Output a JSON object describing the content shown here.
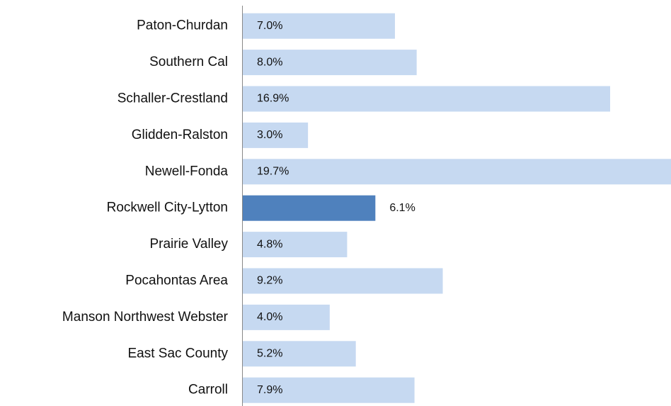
{
  "chart_data": {
    "type": "barh",
    "categories": [
      "Paton-Churdan",
      "Southern Cal",
      "Schaller-Crestland",
      "Glidden-Ralston",
      "Newell-Fonda",
      "Rockwell City-Lytton",
      "Prairie Valley",
      "Pocahontas Area",
      "Manson Northwest Webster",
      "East Sac County",
      "Carroll"
    ],
    "values": [
      7.0,
      8.0,
      16.9,
      3.0,
      19.7,
      6.1,
      4.8,
      9.2,
      4.0,
      5.2,
      7.9
    ],
    "value_labels": [
      "7.0%",
      "8.0%",
      "16.9%",
      "3.0%",
      "19.7%",
      "6.1%",
      "4.8%",
      "9.2%",
      "4.0%",
      "5.2%",
      "7.9%"
    ],
    "colors": [
      "#c6d9f1",
      "#c6d9f1",
      "#c6d9f1",
      "#c6d9f1",
      "#c6d9f1",
      "#4f81bd",
      "#c6d9f1",
      "#c6d9f1",
      "#c6d9f1",
      "#c6d9f1",
      "#c6d9f1"
    ]
  }
}
